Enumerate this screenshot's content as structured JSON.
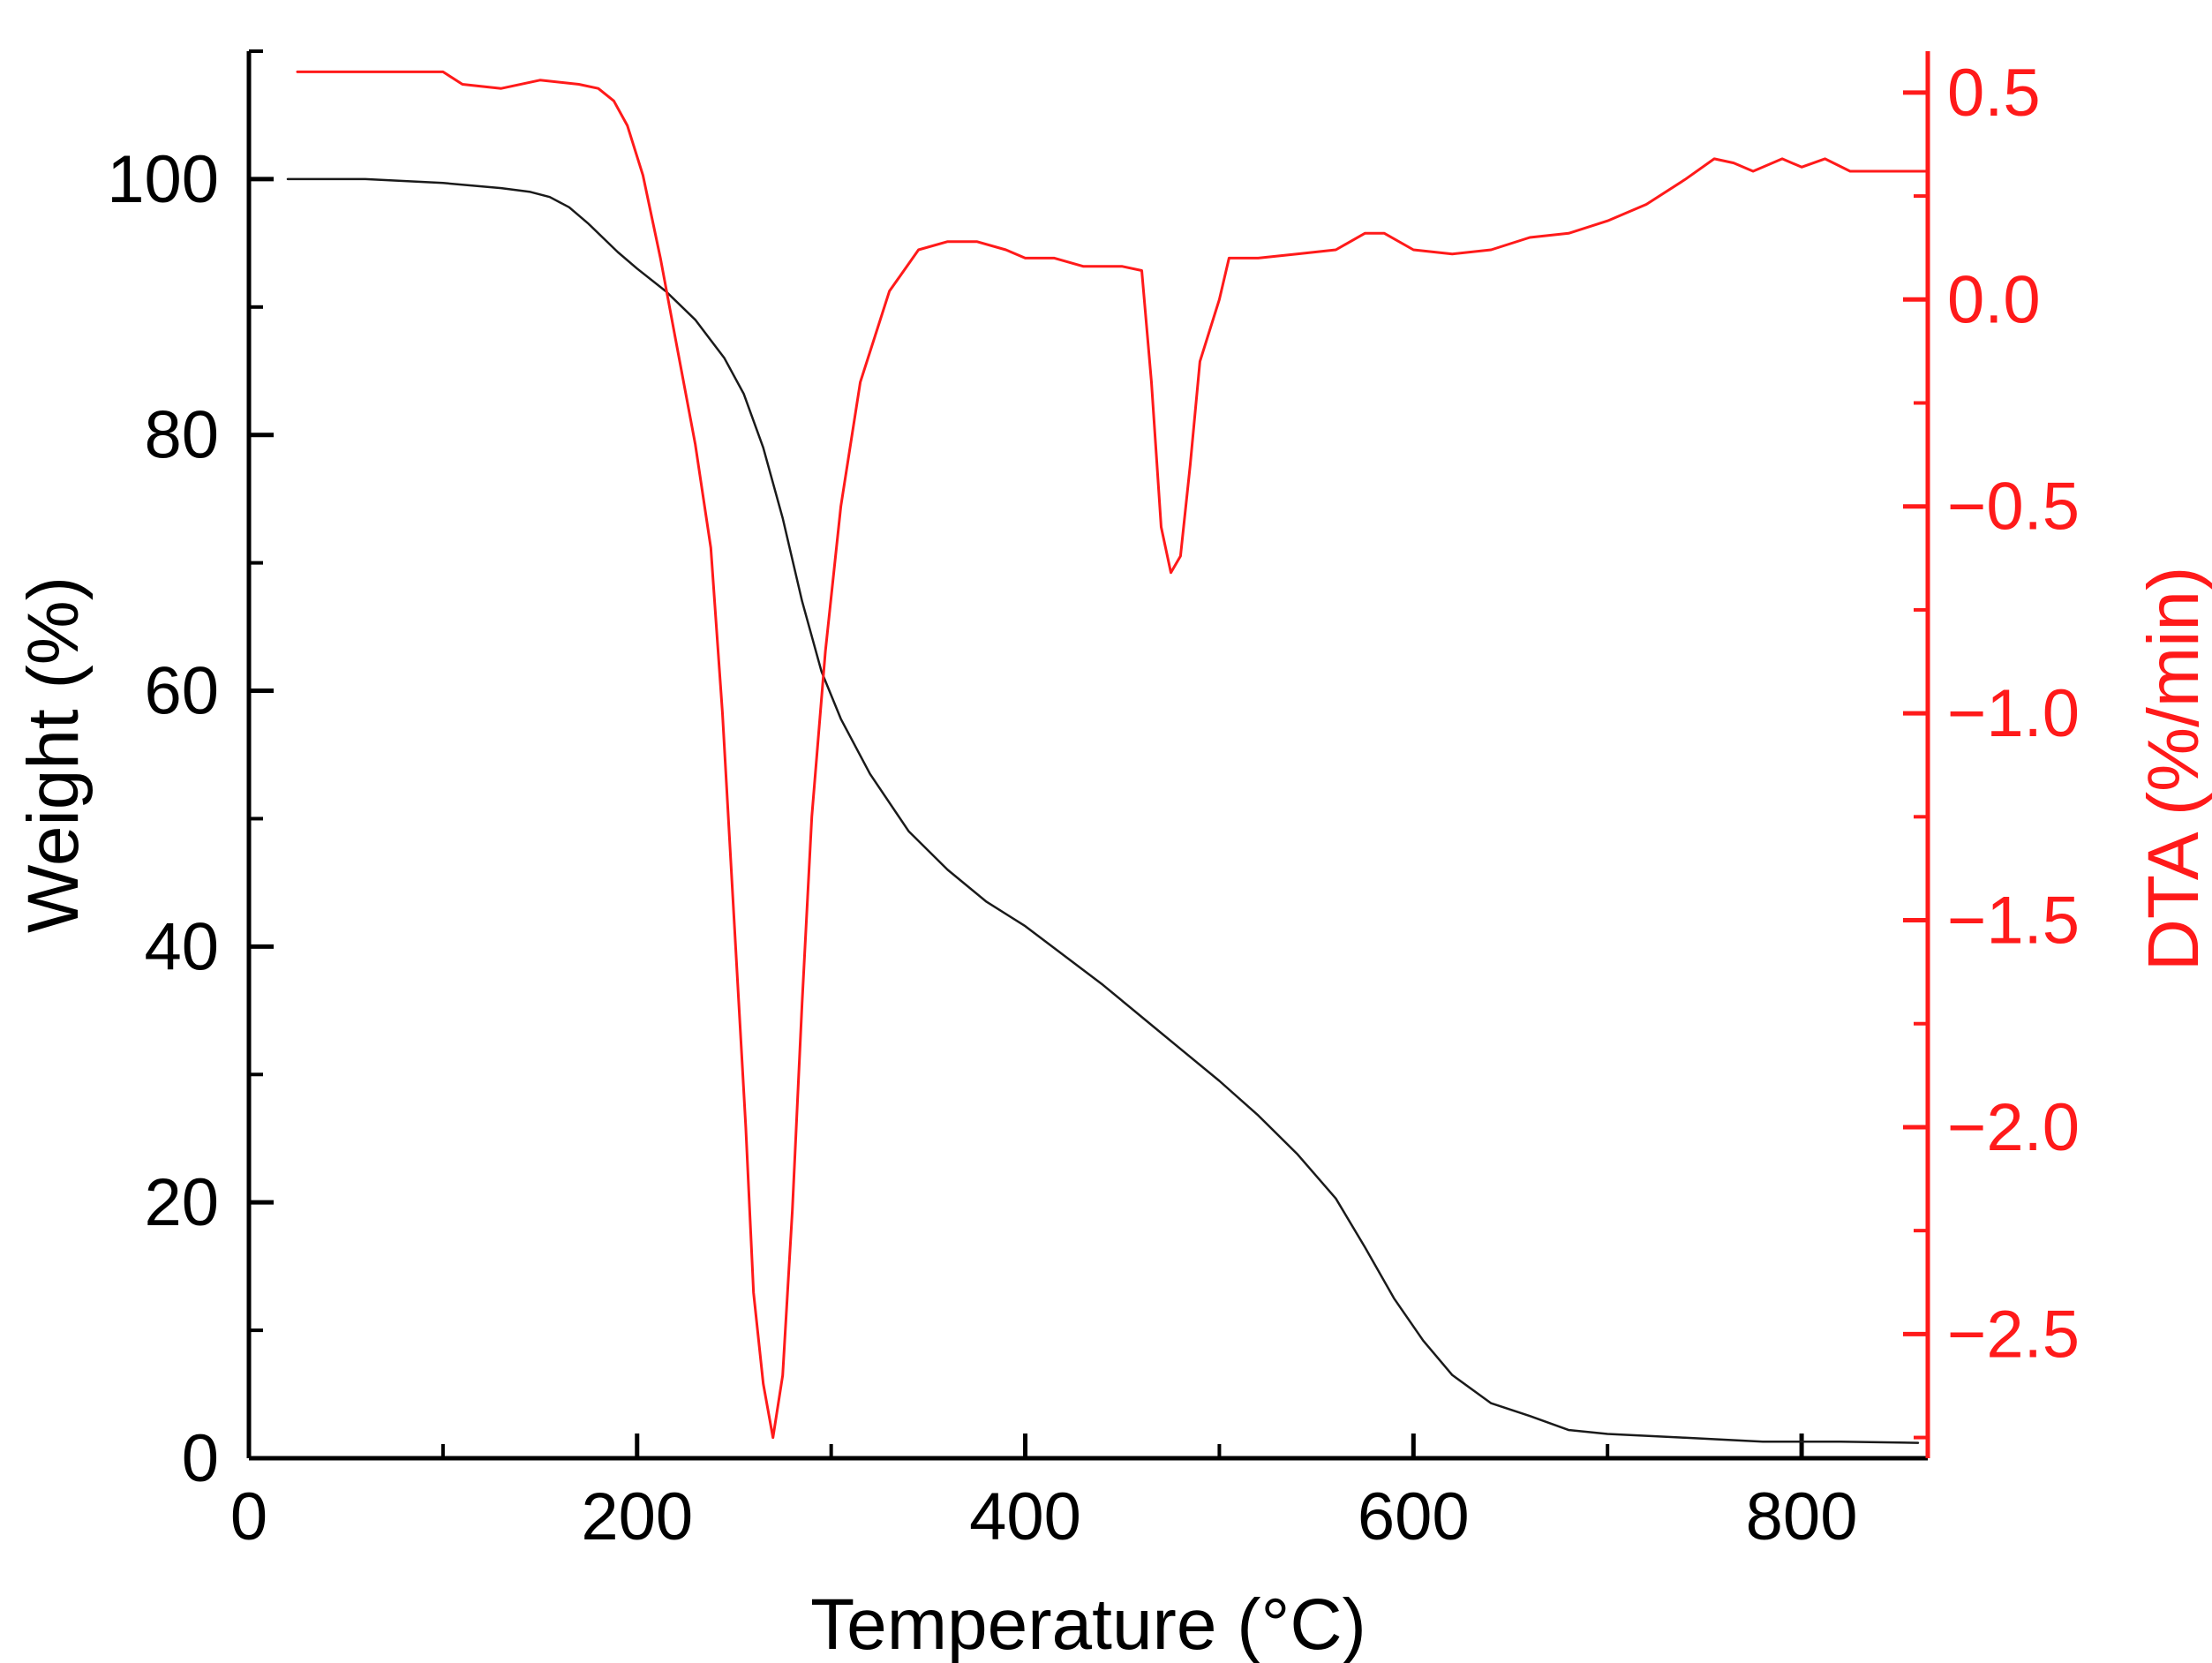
{
  "chart_data": {
    "type": "line",
    "title": "",
    "xlabel": "Temperature (°C)",
    "ylabel": "Weight (%)",
    "y2label": "DTA (%/min)",
    "xlim": [
      0,
      865
    ],
    "ylim": [
      0,
      110
    ],
    "y2lim": [
      -2.8,
      0.6
    ],
    "grid": false,
    "x_ticks": [
      "0",
      "200",
      "400",
      "600",
      "800"
    ],
    "y_ticks": [
      "0",
      "20",
      "40",
      "60",
      "80",
      "100"
    ],
    "y2_ticks": [
      "0.5",
      "0.0",
      "−0.5",
      "−1.0",
      "−1.5",
      "−2.0",
      "−2.5"
    ],
    "series": [
      {
        "axis": "left",
        "color": "#1a1a1a",
        "points": [
          [
            20,
            100
          ],
          [
            60,
            100
          ],
          [
            100,
            99.7
          ],
          [
            130,
            99.3
          ],
          [
            145,
            99
          ],
          [
            155,
            98.6
          ],
          [
            165,
            97.8
          ],
          [
            175,
            96.5
          ],
          [
            190,
            94.3
          ],
          [
            200,
            93
          ],
          [
            215,
            91.2
          ],
          [
            230,
            89
          ],
          [
            245,
            86
          ],
          [
            255,
            83.2
          ],
          [
            265,
            79
          ],
          [
            275,
            73.5
          ],
          [
            285,
            67
          ],
          [
            295,
            61.5
          ],
          [
            305,
            57.8
          ],
          [
            320,
            53.5
          ],
          [
            340,
            49
          ],
          [
            360,
            46
          ],
          [
            380,
            43.5
          ],
          [
            400,
            41.6
          ],
          [
            420,
            39.3
          ],
          [
            440,
            37
          ],
          [
            460,
            34.5
          ],
          [
            480,
            32
          ],
          [
            500,
            29.5
          ],
          [
            520,
            26.8
          ],
          [
            540,
            23.8
          ],
          [
            560,
            20.3
          ],
          [
            575,
            16.5
          ],
          [
            590,
            12.5
          ],
          [
            605,
            9.2
          ],
          [
            620,
            6.5
          ],
          [
            640,
            4.3
          ],
          [
            660,
            3.3
          ],
          [
            680,
            2.2
          ],
          [
            700,
            1.9
          ],
          [
            740,
            1.6
          ],
          [
            780,
            1.3
          ],
          [
            820,
            1.3
          ],
          [
            860,
            1.2
          ]
        ]
      },
      {
        "axis": "right",
        "color": "#ff1a1a",
        "points": [
          [
            25,
            0.55
          ],
          [
            100,
            0.55
          ],
          [
            110,
            0.52
          ],
          [
            130,
            0.51
          ],
          [
            150,
            0.53
          ],
          [
            170,
            0.52
          ],
          [
            180,
            0.51
          ],
          [
            188,
            0.48
          ],
          [
            195,
            0.42
          ],
          [
            203,
            0.3
          ],
          [
            212,
            0.1
          ],
          [
            220,
            -0.1
          ],
          [
            230,
            -0.35
          ],
          [
            238,
            -0.6
          ],
          [
            244,
            -1.0
          ],
          [
            250,
            -1.5
          ],
          [
            256,
            -2.0
          ],
          [
            260,
            -2.4
          ],
          [
            265,
            -2.62
          ],
          [
            270,
            -2.75
          ],
          [
            275,
            -2.6
          ],
          [
            280,
            -2.2
          ],
          [
            285,
            -1.7
          ],
          [
            290,
            -1.25
          ],
          [
            297,
            -0.85
          ],
          [
            305,
            -0.5
          ],
          [
            315,
            -0.2
          ],
          [
            330,
            0.02
          ],
          [
            345,
            0.12
          ],
          [
            360,
            0.14
          ],
          [
            375,
            0.14
          ],
          [
            390,
            0.12
          ],
          [
            400,
            0.1
          ],
          [
            415,
            0.1
          ],
          [
            430,
            0.08
          ],
          [
            450,
            0.08
          ],
          [
            460,
            0.07
          ],
          [
            465,
            -0.2
          ],
          [
            470,
            -0.55
          ],
          [
            475,
            -0.66
          ],
          [
            480,
            -0.62
          ],
          [
            485,
            -0.4
          ],
          [
            490,
            -0.15
          ],
          [
            500,
            0.0
          ],
          [
            505,
            0.1
          ],
          [
            520,
            0.1
          ],
          [
            540,
            0.11
          ],
          [
            560,
            0.12
          ],
          [
            575,
            0.16
          ],
          [
            585,
            0.16
          ],
          [
            600,
            0.12
          ],
          [
            620,
            0.11
          ],
          [
            640,
            0.12
          ],
          [
            660,
            0.15
          ],
          [
            680,
            0.16
          ],
          [
            700,
            0.19
          ],
          [
            720,
            0.23
          ],
          [
            740,
            0.29
          ],
          [
            755,
            0.34
          ],
          [
            765,
            0.33
          ],
          [
            775,
            0.31
          ],
          [
            790,
            0.34
          ],
          [
            800,
            0.32
          ],
          [
            812,
            0.34
          ],
          [
            825,
            0.31
          ],
          [
            840,
            0.31
          ],
          [
            865,
            0.31
          ]
        ]
      }
    ]
  }
}
